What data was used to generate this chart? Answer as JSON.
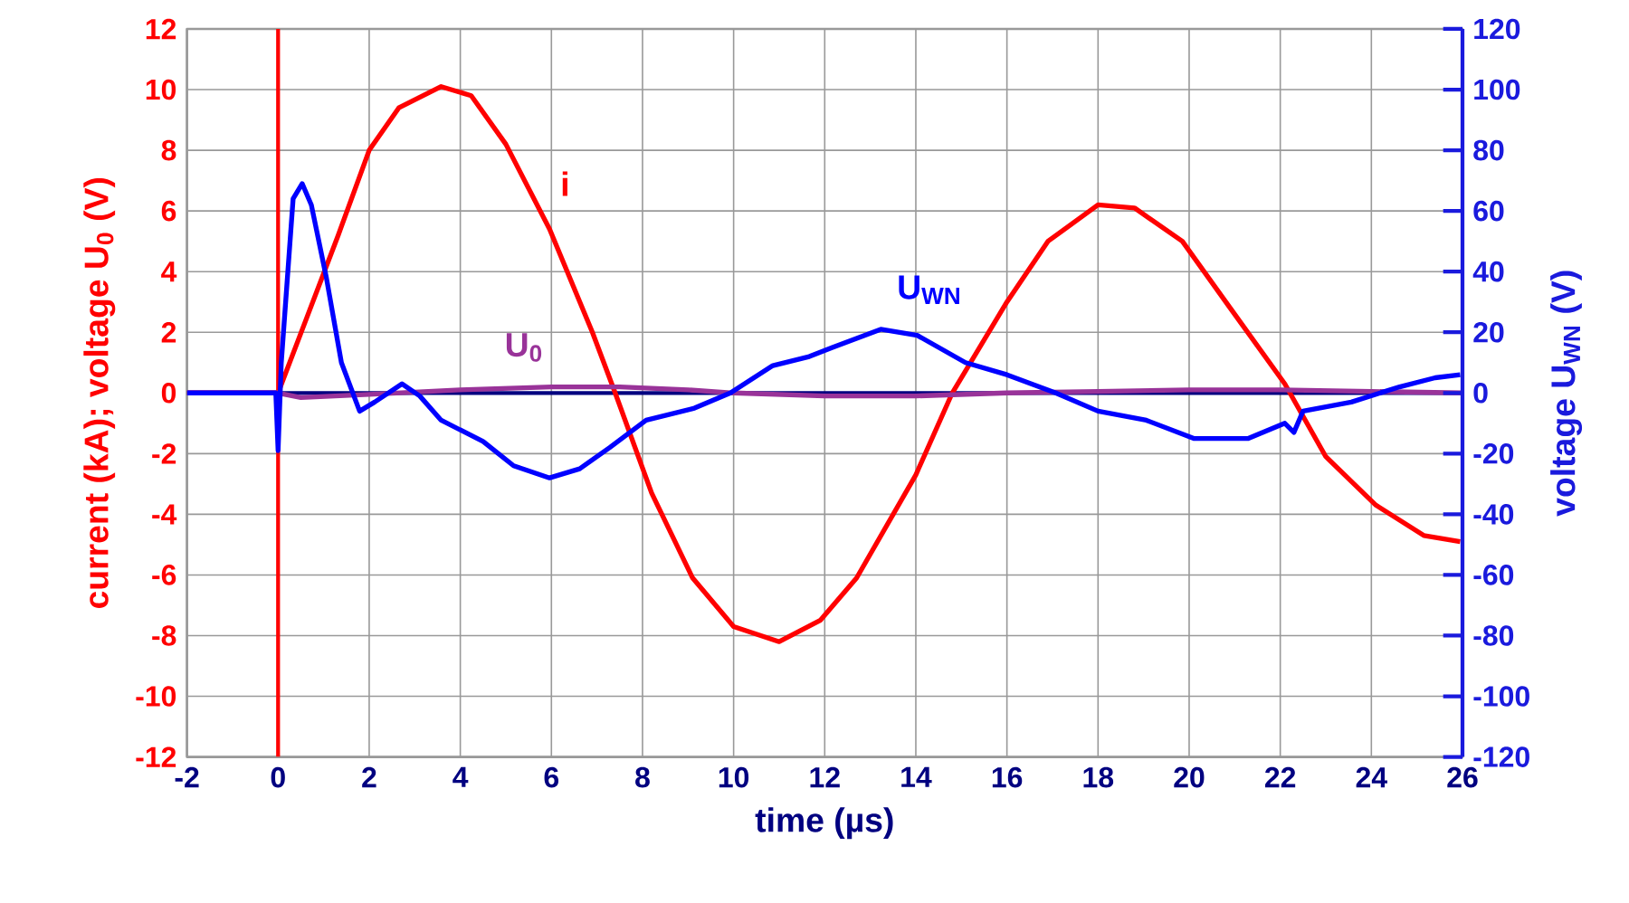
{
  "chart_data": {
    "type": "line",
    "xlabel": "time  (µs)",
    "ylabel": "current (kA);  voltage U$_{0}$  (V)",
    "y2label": "voltage U$_{WN}$  (V)",
    "xlim": [
      -2,
      26
    ],
    "xticks": [
      -2,
      0,
      2,
      4,
      6,
      8,
      10,
      12,
      14,
      16,
      18,
      20,
      22,
      24,
      26
    ],
    "ylim": [
      -12,
      12
    ],
    "yticks": [
      -12,
      -10,
      -8,
      -6,
      -4,
      -2,
      0,
      2,
      4,
      6,
      8,
      10,
      12
    ],
    "y2lim": [
      -120,
      120
    ],
    "y2ticks": [
      -120,
      -100,
      -80,
      -60,
      -40,
      -20,
      0,
      20,
      40,
      60,
      80,
      100,
      120
    ],
    "grid": true,
    "marker": "none",
    "line_style": "solid",
    "ref_lines": [
      {
        "axis": "x",
        "value": 0,
        "color": "#ff0000"
      },
      {
        "axis": "y",
        "value": 0,
        "color": "#000080"
      }
    ],
    "series": [
      {
        "name": "i",
        "color": "#ff0000",
        "x": [
          -2,
          0,
          0.66,
          1.32,
          2.0,
          2.65,
          3.58,
          4.24,
          5.0,
          5.96,
          6.9,
          7.4,
          8.2,
          9.1,
          10.0,
          11.0,
          11.9,
          12.7,
          14.0,
          14.8,
          16.0,
          16.9,
          18.0,
          18.8,
          19.85,
          20.9,
          22.1,
          23.0,
          24.1,
          25.15,
          25.95
        ],
        "values": [
          0,
          0,
          2.6,
          5.2,
          8.0,
          9.4,
          10.1,
          9.8,
          8.2,
          5.4,
          2.0,
          0,
          -3.3,
          -6.1,
          -7.7,
          -8.2,
          -7.5,
          -6.1,
          -2.7,
          0,
          3.0,
          5.0,
          6.2,
          6.1,
          5.0,
          2.8,
          0.3,
          -2.1,
          -3.7,
          -4.7,
          -4.9
        ]
      },
      {
        "name": "U$_{0}$",
        "color": "#993399",
        "x": [
          -2,
          0,
          0.5,
          2,
          4,
          6,
          7.5,
          9,
          10,
          12,
          14,
          16,
          18,
          20,
          22,
          24,
          26
        ],
        "values": [
          0,
          0,
          -0.15,
          -0.05,
          0.1,
          0.2,
          0.2,
          0.1,
          0,
          -0.1,
          -0.1,
          0,
          0.05,
          0.1,
          0.1,
          0.05,
          0
        ]
      },
      {
        "name": "U$_{WN}$",
        "color": "#0000ff",
        "axis": "y2",
        "x": [
          -2,
          -0.05,
          0,
          0.07,
          0.33,
          0.53,
          0.73,
          1.06,
          1.39,
          1.79,
          2.12,
          2.72,
          3.11,
          3.58,
          4.5,
          5.17,
          5.96,
          6.62,
          7.28,
          8.08,
          9.14,
          9.93,
          10.86,
          11.66,
          12.17,
          13.23,
          14.03,
          15.09,
          16.0,
          17.07,
          18.0,
          19.06,
          20.1,
          21.3,
          22.1,
          22.3,
          22.5,
          23.56,
          24.62,
          25.4,
          25.95
        ],
        "values": [
          0,
          0,
          -19,
          10,
          64,
          69,
          62,
          38,
          10,
          -6,
          -3,
          3,
          -1,
          -9,
          -16,
          -24,
          -28,
          -25,
          -18,
          -9,
          -5,
          0,
          9,
          12,
          15,
          21,
          19,
          10,
          6,
          0,
          -6,
          -9,
          -15,
          -15,
          -10,
          -13,
          -6,
          -3,
          2,
          5,
          6
        ]
      }
    ]
  }
}
